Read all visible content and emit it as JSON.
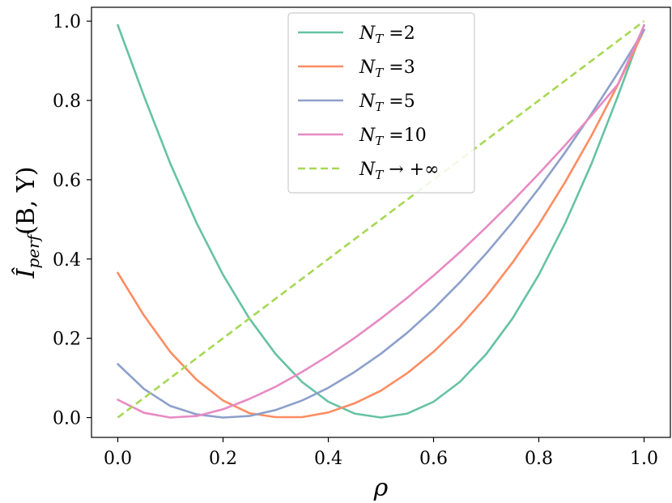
{
  "chart_data": {
    "type": "line",
    "xlabel": "ρ",
    "ylabel": {
      "main": "Î",
      "sub": "perf",
      "args": "(B, Y)"
    },
    "xlim": [
      -0.05,
      1.05
    ],
    "ylim": [
      -0.05,
      1.035
    ],
    "xticks": [
      0.0,
      0.2,
      0.4,
      0.6,
      0.8,
      1.0
    ],
    "xtick_labels": [
      "0.0",
      "0.2",
      "0.4",
      "0.6",
      "0.8",
      "1.0"
    ],
    "yticks": [
      0.0,
      0.2,
      0.4,
      0.6,
      0.8,
      1.0
    ],
    "ytick_labels": [
      "0.0",
      "0.2",
      "0.4",
      "0.6",
      "0.8",
      "1.0"
    ],
    "grid": false,
    "legend_position": "top-center",
    "x": [
      0.0,
      0.05,
      0.1,
      0.15,
      0.2,
      0.25,
      0.3,
      0.35,
      0.4,
      0.45,
      0.5,
      0.55,
      0.6,
      0.65,
      0.7,
      0.75,
      0.8,
      0.85,
      0.9,
      0.95,
      1.0
    ],
    "series": [
      {
        "legend": {
          "sym": "N",
          "sub": "T",
          "rest": " =2"
        },
        "color": "#66c2a5",
        "dash": "solid",
        "values": [
          0.99,
          0.81,
          0.64,
          0.49,
          0.36,
          0.25,
          0.16,
          0.09,
          0.04,
          0.01,
          0.0,
          0.01,
          0.04,
          0.09,
          0.16,
          0.25,
          0.36,
          0.49,
          0.64,
          0.81,
          0.99
        ]
      },
      {
        "legend": {
          "sym": "N",
          "sub": "T",
          "rest": " =3"
        },
        "color": "#fc8d62",
        "dash": "solid",
        "values": [
          0.365,
          0.257,
          0.165,
          0.095,
          0.043,
          0.011,
          0.001,
          0.001,
          0.013,
          0.036,
          0.068,
          0.112,
          0.166,
          0.23,
          0.305,
          0.391,
          0.487,
          0.594,
          0.711,
          0.839,
          0.978
        ]
      },
      {
        "legend": {
          "sym": "N",
          "sub": "T",
          "rest": " =5"
        },
        "color": "#8da0cb",
        "dash": "solid",
        "values": [
          0.135,
          0.072,
          0.029,
          0.008,
          0.0,
          0.004,
          0.019,
          0.043,
          0.075,
          0.115,
          0.161,
          0.214,
          0.274,
          0.341,
          0.414,
          0.493,
          0.578,
          0.669,
          0.766,
          0.869,
          0.978
        ]
      },
      {
        "legend": {
          "sym": "N",
          "sub": "T",
          "rest": " =10"
        },
        "color": "#e78ac3",
        "dash": "solid",
        "values": [
          0.045,
          0.012,
          0.0,
          0.004,
          0.021,
          0.047,
          0.078,
          0.115,
          0.156,
          0.201,
          0.25,
          0.302,
          0.358,
          0.417,
          0.48,
          0.546,
          0.615,
          0.687,
          0.762,
          0.84,
          0.989
        ]
      },
      {
        "legend": {
          "sym": "N",
          "sub": "T",
          "rest": " → +∞"
        },
        "color": "#a6d854",
        "dash": "dashed",
        "values": [
          0.0,
          0.05,
          0.1,
          0.15,
          0.2,
          0.25,
          0.3,
          0.35,
          0.4,
          0.45,
          0.5,
          0.55,
          0.6,
          0.65,
          0.7,
          0.75,
          0.8,
          0.85,
          0.9,
          0.95,
          1.0
        ]
      }
    ]
  }
}
